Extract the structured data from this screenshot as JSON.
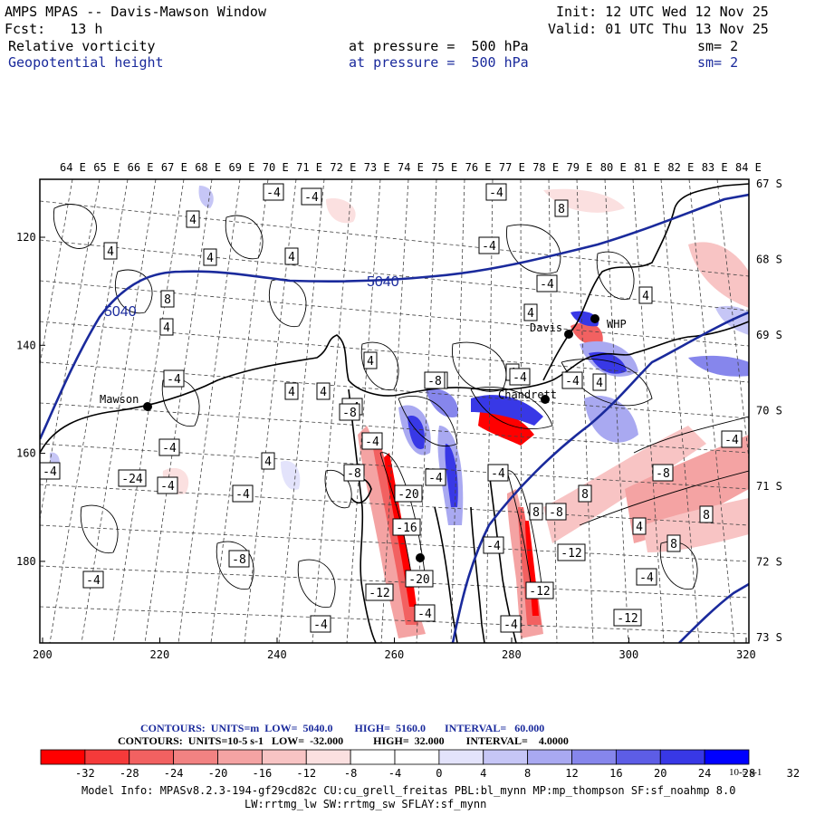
{
  "header": {
    "title": "AMPS MPAS -- Davis-Mawson Window",
    "init": "Init: 12 UTC Wed 12 Nov 25",
    "fcst": "Fcst:   13 h",
    "valid": "Valid: 01 UTC Thu 13 Nov 25",
    "field1": {
      "name": "Relative vorticity",
      "level": "at pressure =  500 hPa",
      "sm": "sm= 2"
    },
    "field2": {
      "name": "Geopotential height",
      "level": "at pressure =  500 hPa",
      "sm": "sm= 2"
    }
  },
  "lon_labels": [
    "64 E",
    "65 E",
    "66 E",
    "67 E",
    "68 E",
    "69 E",
    "70 E",
    "71 E",
    "72 E",
    "73 E",
    "74 E",
    "75 E",
    "76 E",
    "77 E",
    "78 E",
    "79 E",
    "80 E",
    "81 E",
    "82 E",
    "83 E",
    "84 E"
  ],
  "lat_labels": [
    "67 S",
    "68 S",
    "69 S",
    "70 S",
    "71 S",
    "72 S",
    "73 S"
  ],
  "x_ticks": [
    "200",
    "220",
    "240",
    "260",
    "280",
    "300",
    "320"
  ],
  "y_ticks": [
    "120",
    "140",
    "160",
    "180"
  ],
  "stations": [
    {
      "name": "Mawson"
    },
    {
      "name": "Davis"
    },
    {
      "name": "WHP"
    },
    {
      "name": "Chandrett"
    }
  ],
  "height_labels": [
    "5040",
    "5040"
  ],
  "vort_labels": [
    "-4",
    "-4",
    "-4",
    "8",
    "4",
    "4",
    "4",
    "4",
    "8",
    "4",
    "-4",
    "-4",
    "4",
    "4",
    "4",
    "4",
    "4",
    "-4",
    "4",
    "-4",
    "4",
    "4",
    "-4",
    "-4",
    "4",
    "-8",
    "-4",
    "-4",
    "-20",
    "-16",
    "-20",
    "-12",
    "-4",
    "-4",
    "-4",
    "8",
    "-8",
    "8",
    "-4",
    "-12",
    "-8",
    "8",
    "4",
    "8",
    "-4",
    "-12",
    "-12",
    "-8",
    "-8",
    "-4",
    "-24",
    "-4",
    "-4",
    "-8",
    "-4",
    "-4",
    "-4",
    "-4"
  ],
  "colorbar": {
    "units_line1": "CONTOURS:  UNITS=m  LOW=  5040.0        HIGH=  5160.0       INTERVAL=   60.000",
    "units_line2": "CONTOURS:  UNITS=10-5 s-1   LOW=  -32.000           HIGH=  32.000        INTERVAL=    4.0000",
    "ticks": [
      "-32",
      "-28",
      "-24",
      "-20",
      "-16",
      "-12",
      "-8",
      "-4",
      "0",
      "4",
      "8",
      "12",
      "16",
      "20",
      "24",
      "28",
      "32"
    ],
    "unit": "10-5 s-1",
    "colors": [
      "#ff0000",
      "#f53a3a",
      "#f26161",
      "#f28282",
      "#f4a3a3",
      "#f8c4c4",
      "#fbe0e0",
      "#ffffff",
      "#ffffff",
      "#e3e3fb",
      "#c6c6f6",
      "#a9a9f1",
      "#8686ec",
      "#5d5de6",
      "#3838e6",
      "#0000ff"
    ]
  },
  "model_info_line1": "Model Info: MPASv8.2.3-194-gf29cd82c CU:cu_grell_freitas PBL:bl_mynn MP:mp_thompson SF:sf_noahmp 8.0",
  "model_info_line2": "LW:rrtmg_lw SW:rrtmg_sw SFLAY:sf_mynn"
}
